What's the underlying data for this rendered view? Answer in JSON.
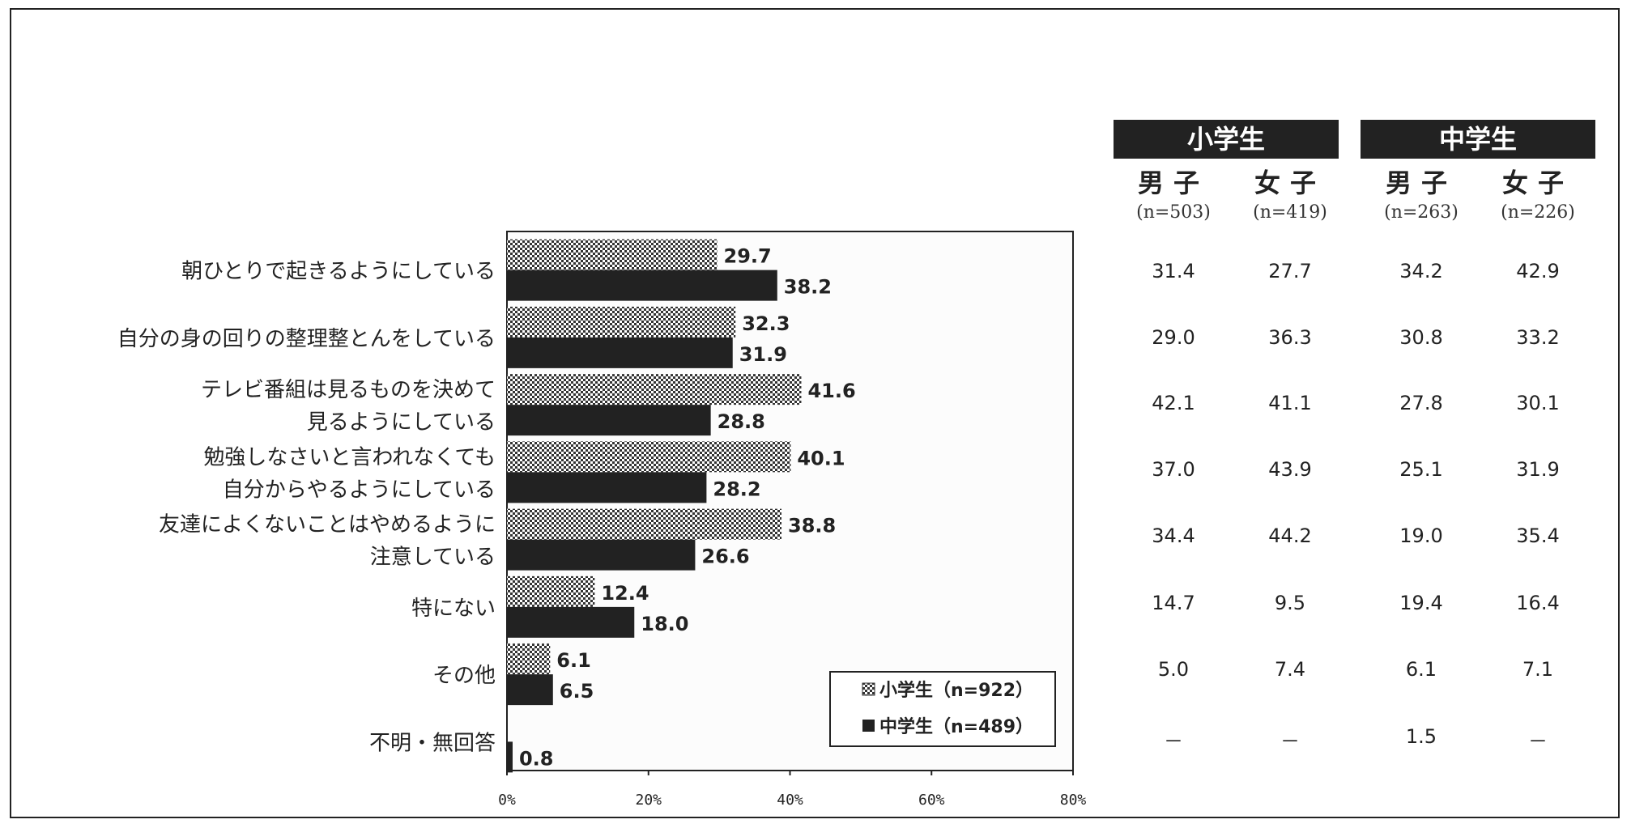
{
  "chart_data": {
    "type": "bar",
    "orientation": "horizontal",
    "categories": [
      "朝ひとりで起きるようにしている",
      "自分の身の回りの整理整とんをしている",
      "テレビ番組は見るものを決めて\n見るようにしている",
      "勉強しなさいと言われなくても\n自分からやるようにしている",
      "友達によくないことはやめるように\n注意している",
      "特にない",
      "その他",
      "不明・無回答"
    ],
    "series": [
      {
        "name": "小学生（n=922）",
        "pattern": "checker",
        "values": [
          29.7,
          32.3,
          41.6,
          40.1,
          38.8,
          12.4,
          6.1,
          null
        ],
        "labels": [
          "29.7",
          "32.3",
          "41.6",
          "40.1",
          "38.8",
          "12.4",
          "6.1",
          ""
        ]
      },
      {
        "name": "中学生（n=489）",
        "color": "#222222",
        "values": [
          38.2,
          31.9,
          28.8,
          28.2,
          26.6,
          18.0,
          6.5,
          0.8
        ],
        "labels": [
          "38.2",
          "31.9",
          "28.8",
          "28.2",
          "26.6",
          "18.0",
          "6.5",
          "0.8"
        ]
      }
    ],
    "xlim": [
      0,
      80
    ],
    "xticks": [
      0,
      20,
      40,
      60,
      80
    ],
    "xtick_labels": [
      "0%",
      "20%",
      "40%",
      "60%",
      "80%"
    ],
    "grid": false,
    "legend_position": "bottom-right"
  },
  "table": {
    "groups": [
      {
        "label": "小学生",
        "columns": [
          {
            "gender": "男子",
            "n": "(n=503)",
            "values": [
              "31.4",
              "29.0",
              "42.1",
              "37.0",
              "34.4",
              "14.7",
              "5.0",
              "－"
            ]
          },
          {
            "gender": "女子",
            "n": "(n=419)",
            "values": [
              "27.7",
              "36.3",
              "41.1",
              "43.9",
              "44.2",
              "9.5",
              "7.4",
              "－"
            ]
          }
        ]
      },
      {
        "label": "中学生",
        "columns": [
          {
            "gender": "男子",
            "n": "(n=263)",
            "values": [
              "34.2",
              "30.8",
              "27.8",
              "25.1",
              "19.0",
              "19.4",
              "6.1",
              "1.5"
            ]
          },
          {
            "gender": "女子",
            "n": "(n=226)",
            "values": [
              "42.9",
              "33.2",
              "30.1",
              "31.9",
              "35.4",
              "16.4",
              "7.1",
              "－"
            ]
          }
        ]
      }
    ]
  }
}
